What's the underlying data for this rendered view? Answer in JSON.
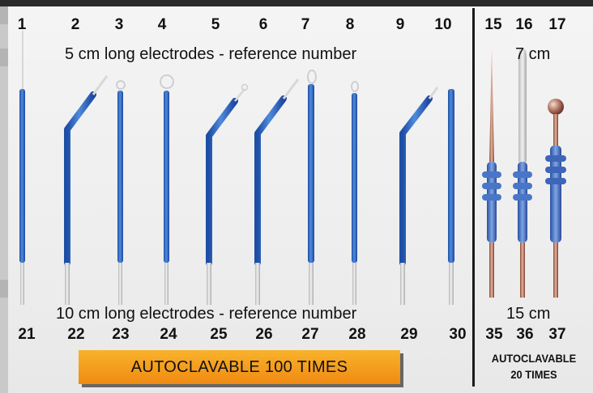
{
  "top_numbers": [
    "1",
    "2",
    "3",
    "4",
    "5",
    "6",
    "7",
    "8",
    "9",
    "10",
    "15",
    "16",
    "17"
  ],
  "bottom_numbers": [
    "21",
    "22",
    "23",
    "24",
    "25",
    "26",
    "27",
    "28",
    "29",
    "30",
    "35",
    "36",
    "37"
  ],
  "captions": {
    "top_left": "5 cm long electrodes - reference number",
    "top_right": "7 cm",
    "bottom_left": "10 cm long electrodes - reference number",
    "bottom_right": "15 cm"
  },
  "badges": {
    "main": "AUTOCLAVABLE 100 TIMES",
    "small_line1": "AUTOCLAVABLE",
    "small_line2": "20 TIMES"
  },
  "colors": {
    "badge_orange": "#f08a12",
    "electrode_blue": "#3f76cf",
    "divider": "#1a1a1a"
  }
}
